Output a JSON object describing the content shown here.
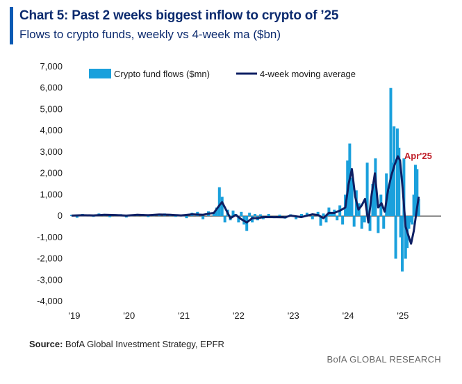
{
  "header": {
    "title": "Chart 5: Past 2 weeks biggest inflow to crypto of ’25",
    "subtitle": "Flows to crypto funds, weekly vs 4-week ma ($bn)"
  },
  "footer": {
    "source_label": "Source:",
    "source_text": " BofA Global Investment Strategy, EPFR",
    "brand": "BofA GLOBAL RESEARCH"
  },
  "colors": {
    "bars": "#1aa0dc",
    "ma_line": "#0e1f63",
    "annotation": "#c0202a",
    "accent": "#0b5ab4"
  },
  "chart_data": {
    "type": "bar",
    "title": "Chart 5: Past 2 weeks biggest inflow to crypto of ’25",
    "subtitle": "Flows to crypto funds, weekly vs 4-week ma ($bn)",
    "ylim": [
      -4000,
      7000
    ],
    "yticks": [
      7000,
      6000,
      5000,
      4000,
      3000,
      2000,
      1000,
      0,
      -1000,
      -2000,
      -3000,
      -4000
    ],
    "ytick_labels": [
      "7,000",
      "6,000",
      "5,000",
      "4,000",
      "3,000",
      "2,000",
      "1,000",
      "0",
      "-1,000",
      "-2,000",
      "-3,000",
      "-4,000"
    ],
    "xlim": [
      2019.0,
      2025.75
    ],
    "xticks": [
      2019,
      2020,
      2021,
      2022,
      2023,
      2024,
      2025
    ],
    "xtick_labels": [
      "'19",
      "'20",
      "'21",
      "'22",
      "'23",
      "'24",
      "'25"
    ],
    "legend": {
      "position": "top",
      "entries": [
        "Crypto fund flows ($mn)",
        "4-week moving average"
      ]
    },
    "annotation": {
      "text": "Apr'25",
      "x": 2025.33,
      "y": 2800
    },
    "series": [
      {
        "name": "Crypto fund flows ($mn)",
        "kind": "bar",
        "x": [
          2019.0,
          2019.1,
          2019.2,
          2019.3,
          2019.4,
          2019.5,
          2019.6,
          2019.7,
          2019.8,
          2019.9,
          2020.0,
          2020.1,
          2020.2,
          2020.3,
          2020.4,
          2020.5,
          2020.6,
          2020.7,
          2020.8,
          2020.9,
          2021.0,
          2021.1,
          2021.2,
          2021.3,
          2021.4,
          2021.5,
          2021.6,
          2021.65,
          2021.7,
          2021.75,
          2021.8,
          2021.85,
          2021.9,
          2021.95,
          2022.0,
          2022.05,
          2022.1,
          2022.15,
          2022.2,
          2022.25,
          2022.3,
          2022.35,
          2022.4,
          2022.45,
          2022.5,
          2022.6,
          2022.7,
          2022.8,
          2022.9,
          2023.0,
          2023.1,
          2023.2,
          2023.3,
          2023.4,
          2023.5,
          2023.55,
          2023.6,
          2023.65,
          2023.7,
          2023.75,
          2023.8,
          2023.85,
          2023.9,
          2023.95,
          2024.0,
          2024.04,
          2024.08,
          2024.12,
          2024.16,
          2024.2,
          2024.25,
          2024.3,
          2024.35,
          2024.4,
          2024.45,
          2024.5,
          2024.55,
          2024.6,
          2024.65,
          2024.7,
          2024.75,
          2024.8,
          2024.83,
          2024.86,
          2024.89,
          2024.92,
          2024.95,
          2024.98,
          2025.01,
          2025.04,
          2025.07,
          2025.1,
          2025.13,
          2025.16,
          2025.19,
          2025.22,
          2025.25,
          2025.28,
          2025.31,
          2025.34
        ],
        "values": [
          50,
          -80,
          100,
          60,
          -40,
          120,
          80,
          -60,
          40,
          90,
          -70,
          60,
          50,
          100,
          -50,
          80,
          90,
          120,
          60,
          -40,
          50,
          -100,
          150,
          200,
          -150,
          220,
          180,
          400,
          1350,
          900,
          -300,
          300,
          -200,
          250,
          100,
          -300,
          200,
          -400,
          -700,
          150,
          -300,
          100,
          -200,
          80,
          -150,
          100,
          -100,
          60,
          -120,
          80,
          -150,
          100,
          150,
          -150,
          200,
          -450,
          120,
          -300,
          400,
          200,
          300,
          -200,
          500,
          -400,
          1000,
          2600,
          3400,
          1800,
          -500,
          1200,
          600,
          -600,
          -300,
          2500,
          -700,
          1500,
          2700,
          -800,
          1000,
          -600,
          2000,
          1200,
          6000,
          2500,
          4200,
          -2000,
          4100,
          3200,
          -1000,
          -2600,
          2700,
          -2000,
          -1500,
          -600,
          -300,
          -400,
          1000,
          2400,
          2200,
          800
        ]
      },
      {
        "name": "4-week moving average",
        "kind": "line",
        "x": [
          2019.0,
          2019.2,
          2019.4,
          2019.6,
          2019.8,
          2020.0,
          2020.2,
          2020.4,
          2020.6,
          2020.8,
          2021.0,
          2021.2,
          2021.4,
          2021.6,
          2021.7,
          2021.75,
          2021.8,
          2021.85,
          2021.9,
          2022.0,
          2022.1,
          2022.2,
          2022.3,
          2022.4,
          2022.5,
          2022.7,
          2022.9,
          2023.0,
          2023.2,
          2023.4,
          2023.5,
          2023.6,
          2023.7,
          2023.8,
          2023.9,
          2024.0,
          2024.06,
          2024.12,
          2024.18,
          2024.24,
          2024.3,
          2024.36,
          2024.42,
          2024.48,
          2024.54,
          2024.6,
          2024.66,
          2024.72,
          2024.78,
          2024.84,
          2024.9,
          2024.96,
          2025.0,
          2025.05,
          2025.1,
          2025.15,
          2025.2,
          2025.25,
          2025.3,
          2025.34
        ],
        "values": [
          20,
          40,
          30,
          60,
          50,
          20,
          60,
          40,
          70,
          60,
          30,
          80,
          60,
          150,
          500,
          650,
          400,
          150,
          -100,
          50,
          -150,
          -300,
          -100,
          -100,
          -50,
          -50,
          -60,
          20,
          -50,
          80,
          50,
          -100,
          150,
          150,
          250,
          400,
          1500,
          2200,
          900,
          300,
          500,
          800,
          -300,
          1000,
          2000,
          400,
          600,
          200,
          1200,
          1900,
          2400,
          2800,
          2600,
          1200,
          -500,
          -900,
          -1300,
          -700,
          200,
          900
        ]
      }
    ]
  }
}
